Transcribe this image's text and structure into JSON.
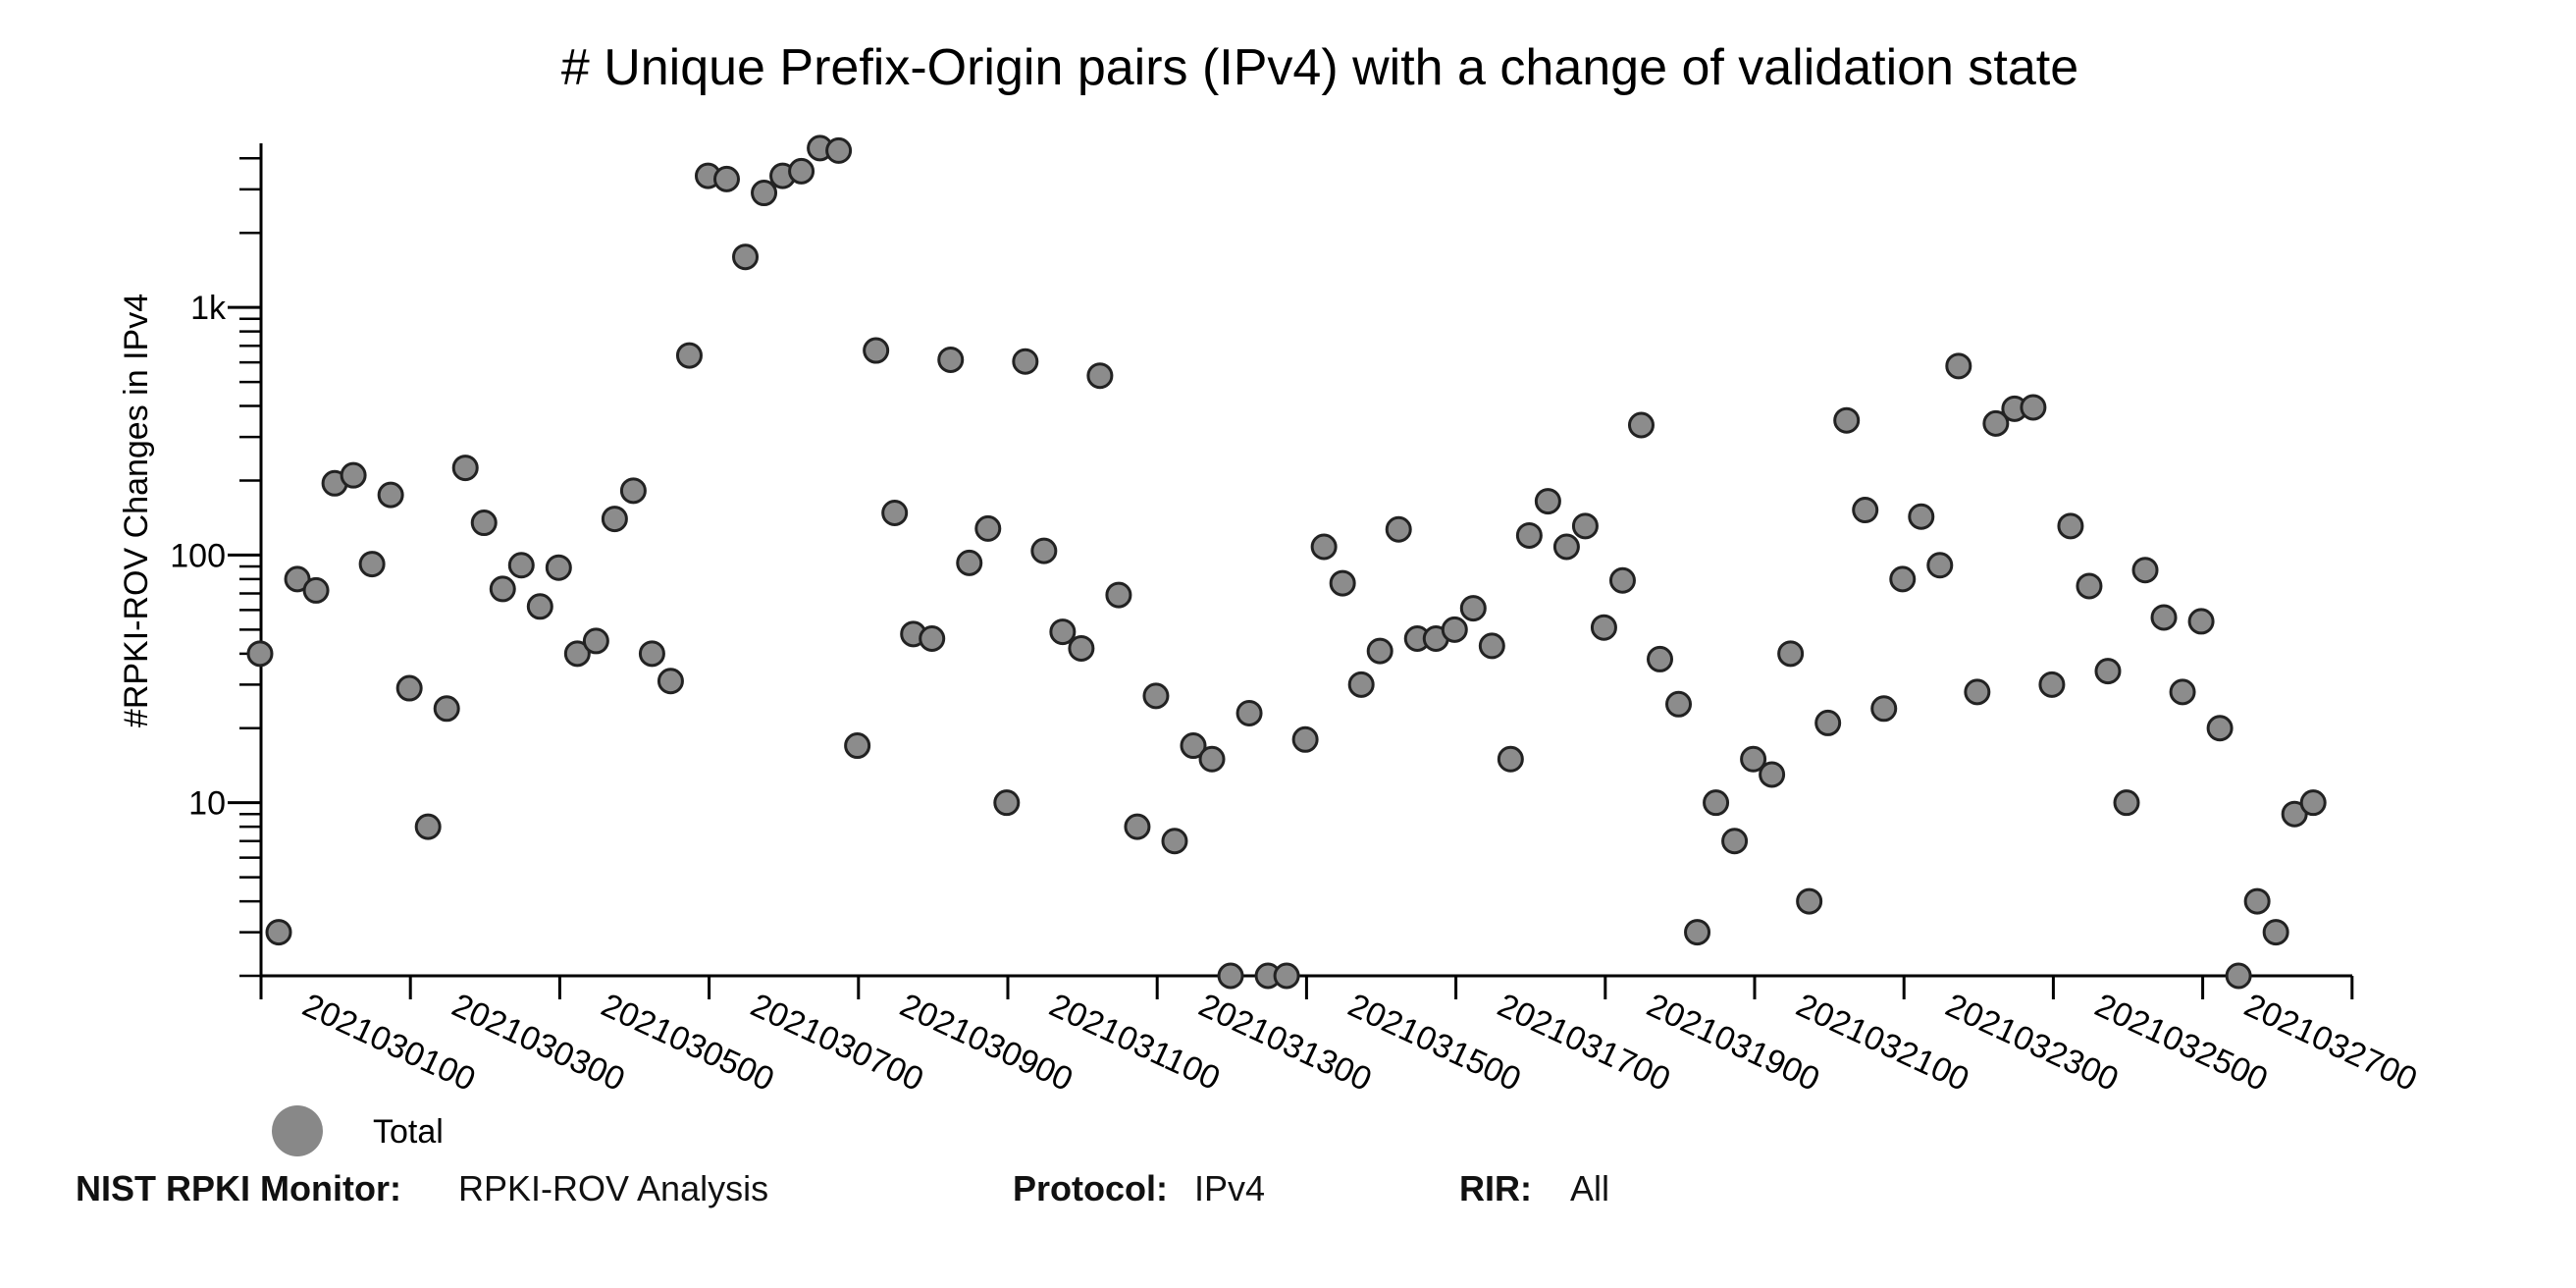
{
  "chart_data": {
    "type": "scatter",
    "title": "# Unique Prefix-Origin pairs (IPv4) with a change of validation state",
    "ylabel": "#RPKI-ROV Changes in IPv4",
    "xlabel": "",
    "yscale": "log",
    "ylim": [
      2,
      4600
    ],
    "y_ticks": [
      {
        "value": 10,
        "label": "10"
      },
      {
        "value": 100,
        "label": "100"
      },
      {
        "value": 1000,
        "label": "1k"
      }
    ],
    "x_ticks": [
      "2021030100",
      "2021030300",
      "2021030500",
      "2021030700",
      "2021030900",
      "2021031100",
      "2021031300",
      "2021031500",
      "2021031700",
      "2021031900",
      "2021032100",
      "2021032300",
      "2021032500",
      "2021032700"
    ],
    "legend": [
      {
        "name": "Total",
        "color": "#888888"
      }
    ],
    "marker_color": "#8c8c8c",
    "series": [
      {
        "name": "Total",
        "values": [
          40,
          3,
          80,
          72,
          195,
          210,
          92,
          175,
          29,
          8,
          24,
          225,
          135,
          73,
          91,
          62,
          89,
          40,
          45,
          140,
          182,
          40,
          31,
          640,
          3400,
          3300,
          1600,
          2900,
          3400,
          3550,
          4400,
          4300,
          17,
          670,
          148,
          48,
          46,
          615,
          93,
          128,
          10,
          605,
          104,
          49,
          42,
          530,
          69,
          8,
          27,
          7,
          17,
          15,
          2,
          23,
          2,
          2,
          18,
          108,
          77,
          30,
          41,
          127,
          46,
          46,
          50,
          61,
          43,
          15,
          120,
          165,
          108,
          131,
          51,
          79,
          335,
          38,
          25,
          3,
          10,
          7,
          15,
          13,
          40,
          4,
          21,
          350,
          152,
          24,
          80,
          143,
          91,
          580,
          28,
          340,
          390,
          395,
          30,
          131,
          75,
          34,
          10,
          87,
          56,
          28,
          54,
          20,
          2,
          4,
          3,
          9,
          10
        ]
      }
    ]
  },
  "footer": {
    "monitor_label": "NIST RPKI Monitor:",
    "monitor_value": "RPKI-ROV Analysis",
    "protocol_label": "Protocol:",
    "protocol_value": "IPv4",
    "rir_label": "RIR:",
    "rir_value": "All"
  }
}
